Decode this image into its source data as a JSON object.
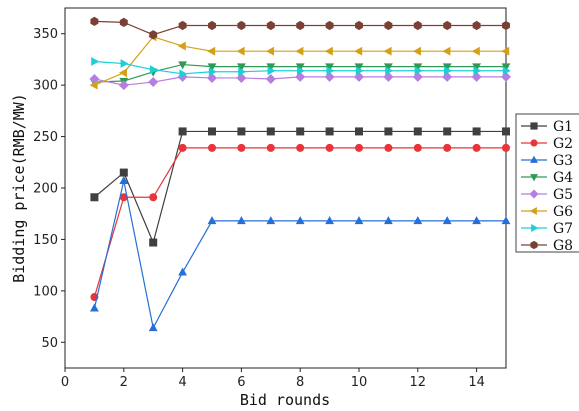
{
  "chart_data": {
    "type": "line",
    "xlabel": "Bid rounds",
    "ylabel": "Bidding price(RMB/MW)",
    "xlim": [
      0,
      15
    ],
    "ylim": [
      25,
      375
    ],
    "xticks": [
      0,
      2,
      4,
      6,
      8,
      10,
      12,
      14
    ],
    "yticks": [
      50,
      100,
      150,
      200,
      250,
      300,
      350
    ],
    "grid": false,
    "legend_position": "right",
    "x": [
      1,
      2,
      3,
      4,
      5,
      6,
      7,
      8,
      9,
      10,
      11,
      12,
      13,
      14,
      15
    ],
    "series": [
      {
        "name": "G1",
        "color": "#404040",
        "marker": "square",
        "values": [
          191,
          215,
          147,
          255,
          255,
          255,
          255,
          255,
          255,
          255,
          255,
          255,
          255,
          255,
          255
        ]
      },
      {
        "name": "G2",
        "color": "#e8343a",
        "marker": "circle",
        "values": [
          94,
          191,
          191,
          239,
          239,
          239,
          239,
          239,
          239,
          239,
          239,
          239,
          239,
          239,
          239
        ]
      },
      {
        "name": "G3",
        "color": "#2470d8",
        "marker": "triangle-up",
        "values": [
          83,
          207,
          64,
          118,
          168,
          168,
          168,
          168,
          168,
          168,
          168,
          168,
          168,
          168,
          168
        ]
      },
      {
        "name": "G4",
        "color": "#2e9a55",
        "marker": "triangle-down",
        "values": [
          303,
          304,
          313,
          320,
          318,
          318,
          318,
          318,
          318,
          318,
          318,
          318,
          318,
          318,
          318
        ]
      },
      {
        "name": "G5",
        "color": "#b57ee0",
        "marker": "diamond",
        "values": [
          306,
          300,
          303,
          308,
          307,
          307,
          306,
          308,
          308,
          308,
          308,
          308,
          308,
          308,
          308
        ]
      },
      {
        "name": "G6",
        "color": "#d4a017",
        "marker": "triangle-left",
        "values": [
          300,
          312,
          347,
          338,
          333,
          333,
          333,
          333,
          333,
          333,
          333,
          333,
          333,
          333,
          333
        ]
      },
      {
        "name": "G7",
        "color": "#1ccfd6",
        "marker": "triangle-right",
        "values": [
          323,
          321,
          315,
          311,
          313,
          313,
          314,
          314,
          314,
          314,
          314,
          314,
          314,
          314,
          314
        ]
      },
      {
        "name": "G8",
        "color": "#7a4035",
        "marker": "hexagon",
        "values": [
          362,
          361,
          349,
          358,
          358,
          358,
          358,
          358,
          358,
          358,
          358,
          358,
          358,
          358,
          358
        ]
      }
    ]
  }
}
